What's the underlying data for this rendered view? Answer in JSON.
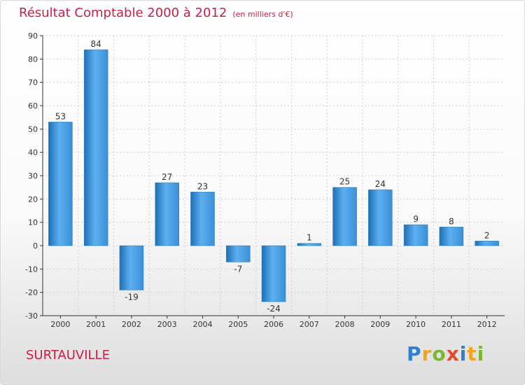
{
  "chart_data": {
    "type": "bar",
    "title": "Résultat Comptable 2000 à 2012",
    "subtitle": "(en milliers d'€)",
    "xlabel": "",
    "ylabel": "",
    "categories": [
      "2000",
      "2001",
      "2002",
      "2003",
      "2004",
      "2005",
      "2006",
      "2007",
      "2008",
      "2009",
      "2010",
      "2011",
      "2012"
    ],
    "values": [
      53,
      84,
      -19,
      27,
      23,
      -7,
      -24,
      1,
      25,
      24,
      9,
      8,
      2
    ],
    "data_labels": [
      "53",
      "84",
      "-19",
      "27",
      "23",
      "-7",
      "-24",
      "1",
      "25",
      "24",
      "9",
      "8",
      "2"
    ],
    "ylim": [
      -30,
      90
    ],
    "yticks": [
      90,
      80,
      70,
      60,
      50,
      40,
      30,
      20,
      10,
      0,
      -10,
      -20,
      -30
    ],
    "ytick_labels": [
      "90",
      "80",
      "70",
      "60",
      "50",
      "40",
      "30",
      "20",
      "10",
      "0",
      "-10",
      "-20",
      "-30"
    ],
    "grid": true,
    "legend": false,
    "bar_color": "#3a8fd8"
  },
  "footer": {
    "commune": "SURTAUVILLE",
    "logo_letters": [
      "P",
      "r",
      "o",
      "x",
      "i",
      "t",
      "i"
    ]
  }
}
